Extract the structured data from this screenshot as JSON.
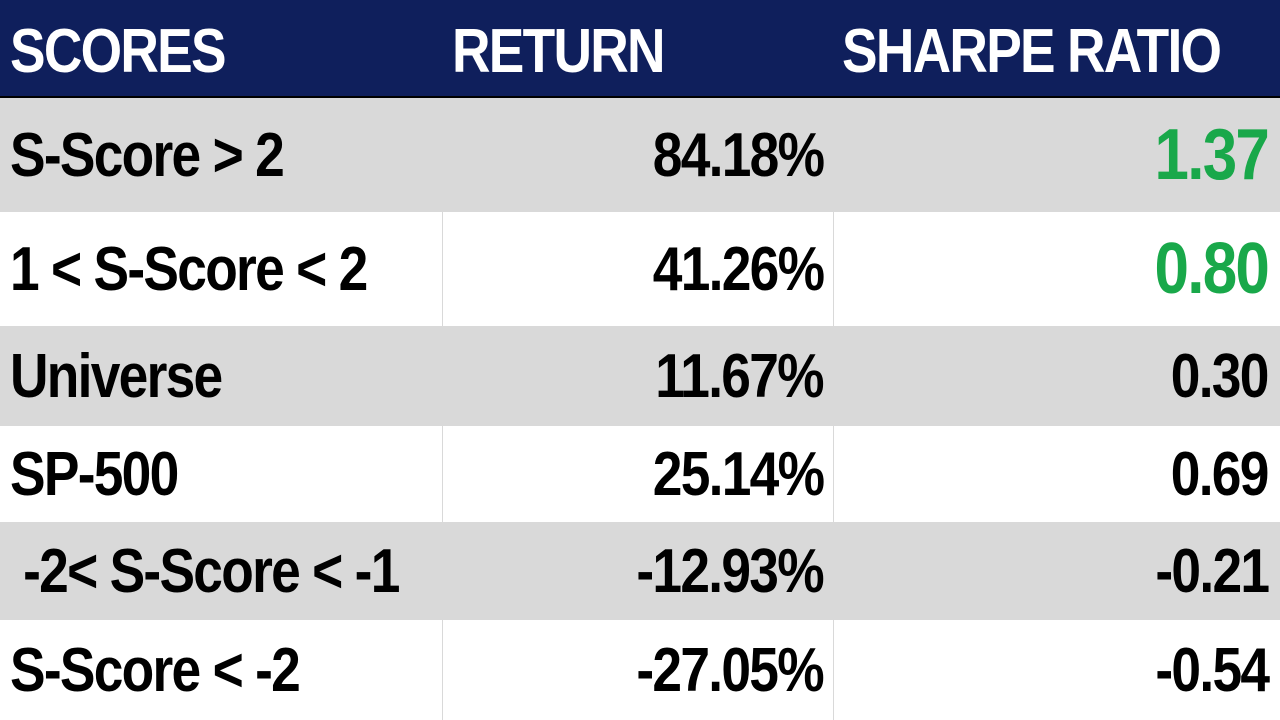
{
  "chart_data": {
    "type": "table",
    "columns": [
      "SCORES",
      "RETURN",
      "SHARPE RATIO"
    ],
    "rows": [
      {
        "score": "S-Score > 2",
        "return": "84.18%",
        "sharpe": "1.37",
        "highlight": true
      },
      {
        "score": "1 < S-Score < 2",
        "return": "41.26%",
        "sharpe": "0.80",
        "highlight": true
      },
      {
        "score": "Universe",
        "return": "11.67%",
        "sharpe": "0.30",
        "highlight": false
      },
      {
        "score": "SP-500",
        "return": "25.14%",
        "sharpe": "0.69",
        "highlight": false
      },
      {
        "score": " -2< S-Score < -1",
        "return": "-12.93%",
        "sharpe": "-0.21",
        "highlight": false
      },
      {
        "score": "S-Score < -2",
        "return": "-27.05%",
        "sharpe": "-0.54",
        "highlight": false
      }
    ],
    "colors": {
      "header_background": "#0f1f5c",
      "header_text": "#ffffff",
      "shaded_row": "#d9d9d9",
      "highlight_text": "#19a84a",
      "body_text": "#000000"
    }
  }
}
